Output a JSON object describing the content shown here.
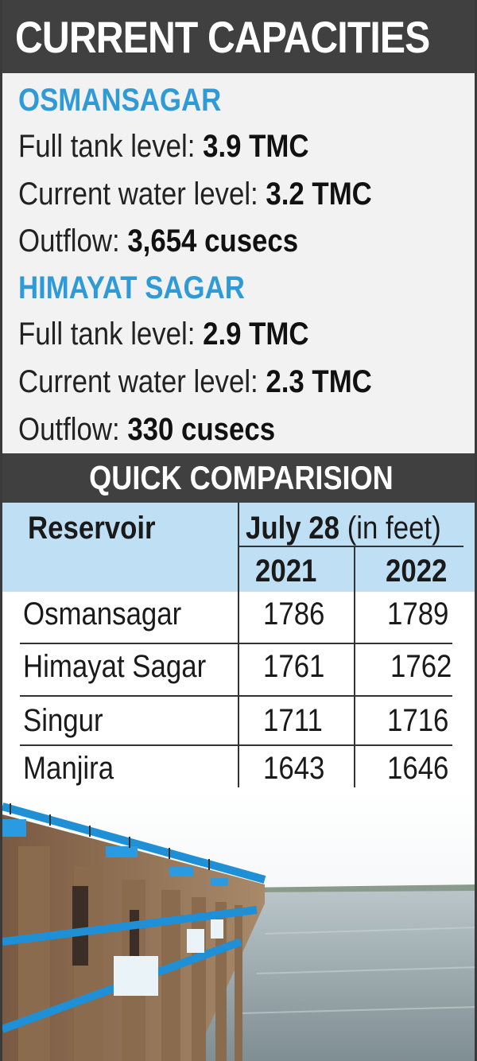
{
  "header": {
    "title": "CURRENT CAPACITIES"
  },
  "reservoirs": [
    {
      "name": "OSMANSAGAR",
      "full_tank_label": "Full tank level:",
      "full_tank_value": "3.9 TMC",
      "current_label": "Current water level:",
      "current_value": "3.2 TMC",
      "outflow_label": "Outflow:",
      "outflow_value": "3,654 cusecs"
    },
    {
      "name": "HIMAYAT SAGAR",
      "full_tank_label": "Full tank level:",
      "full_tank_value": "2.9 TMC",
      "current_label": "Current water level:",
      "current_value": "2.3 TMC",
      "outflow_label": "Outflow:",
      "outflow_value": "330 cusecs"
    }
  ],
  "comparison": {
    "title": "QUICK COMPARISION",
    "col_reservoir": "Reservoir",
    "col_date": "July 28",
    "col_unit": "(in feet)",
    "years": [
      "2021",
      "2022"
    ],
    "rows": [
      {
        "name": "Osmansagar",
        "y2021": "1786",
        "y2022": "1789"
      },
      {
        "name": "Himayat Sagar",
        "y2021": "1761",
        "y2022": "1762"
      },
      {
        "name": "Singur",
        "y2021": "1711",
        "y2022": "1716"
      },
      {
        "name": "Manjira",
        "y2021": "1643",
        "y2022": "1646"
      }
    ]
  },
  "colors": {
    "header_bg": "#404040",
    "reservoir_name": "#2f9ad8",
    "table_header_bg": "#bfe0f4",
    "section_bg": "#f2f2f2"
  }
}
